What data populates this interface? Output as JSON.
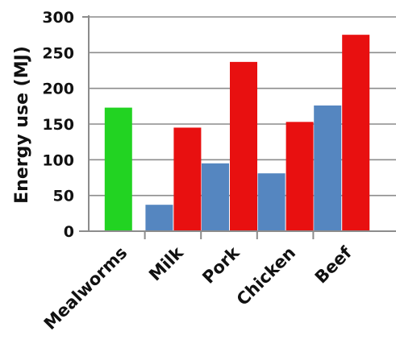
{
  "chart_data": {
    "type": "bar",
    "title": "",
    "xlabel": "",
    "ylabel": "Energy use (MJ)",
    "ylim": [
      0,
      300
    ],
    "yticks": [
      0,
      50,
      100,
      150,
      200,
      250,
      300
    ],
    "grid": "horizontal",
    "categories": [
      "Mealworms",
      "Milk",
      "Pork",
      "Chicken",
      "Beef"
    ],
    "series": [
      {
        "color": "#22d322",
        "values": [
          173,
          null,
          null,
          null,
          null
        ]
      },
      {
        "color": "#5586c0",
        "values": [
          null,
          37,
          95,
          81,
          176
        ]
      },
      {
        "color": "#e81010",
        "values": [
          null,
          145,
          237,
          153,
          275
        ]
      }
    ]
  }
}
